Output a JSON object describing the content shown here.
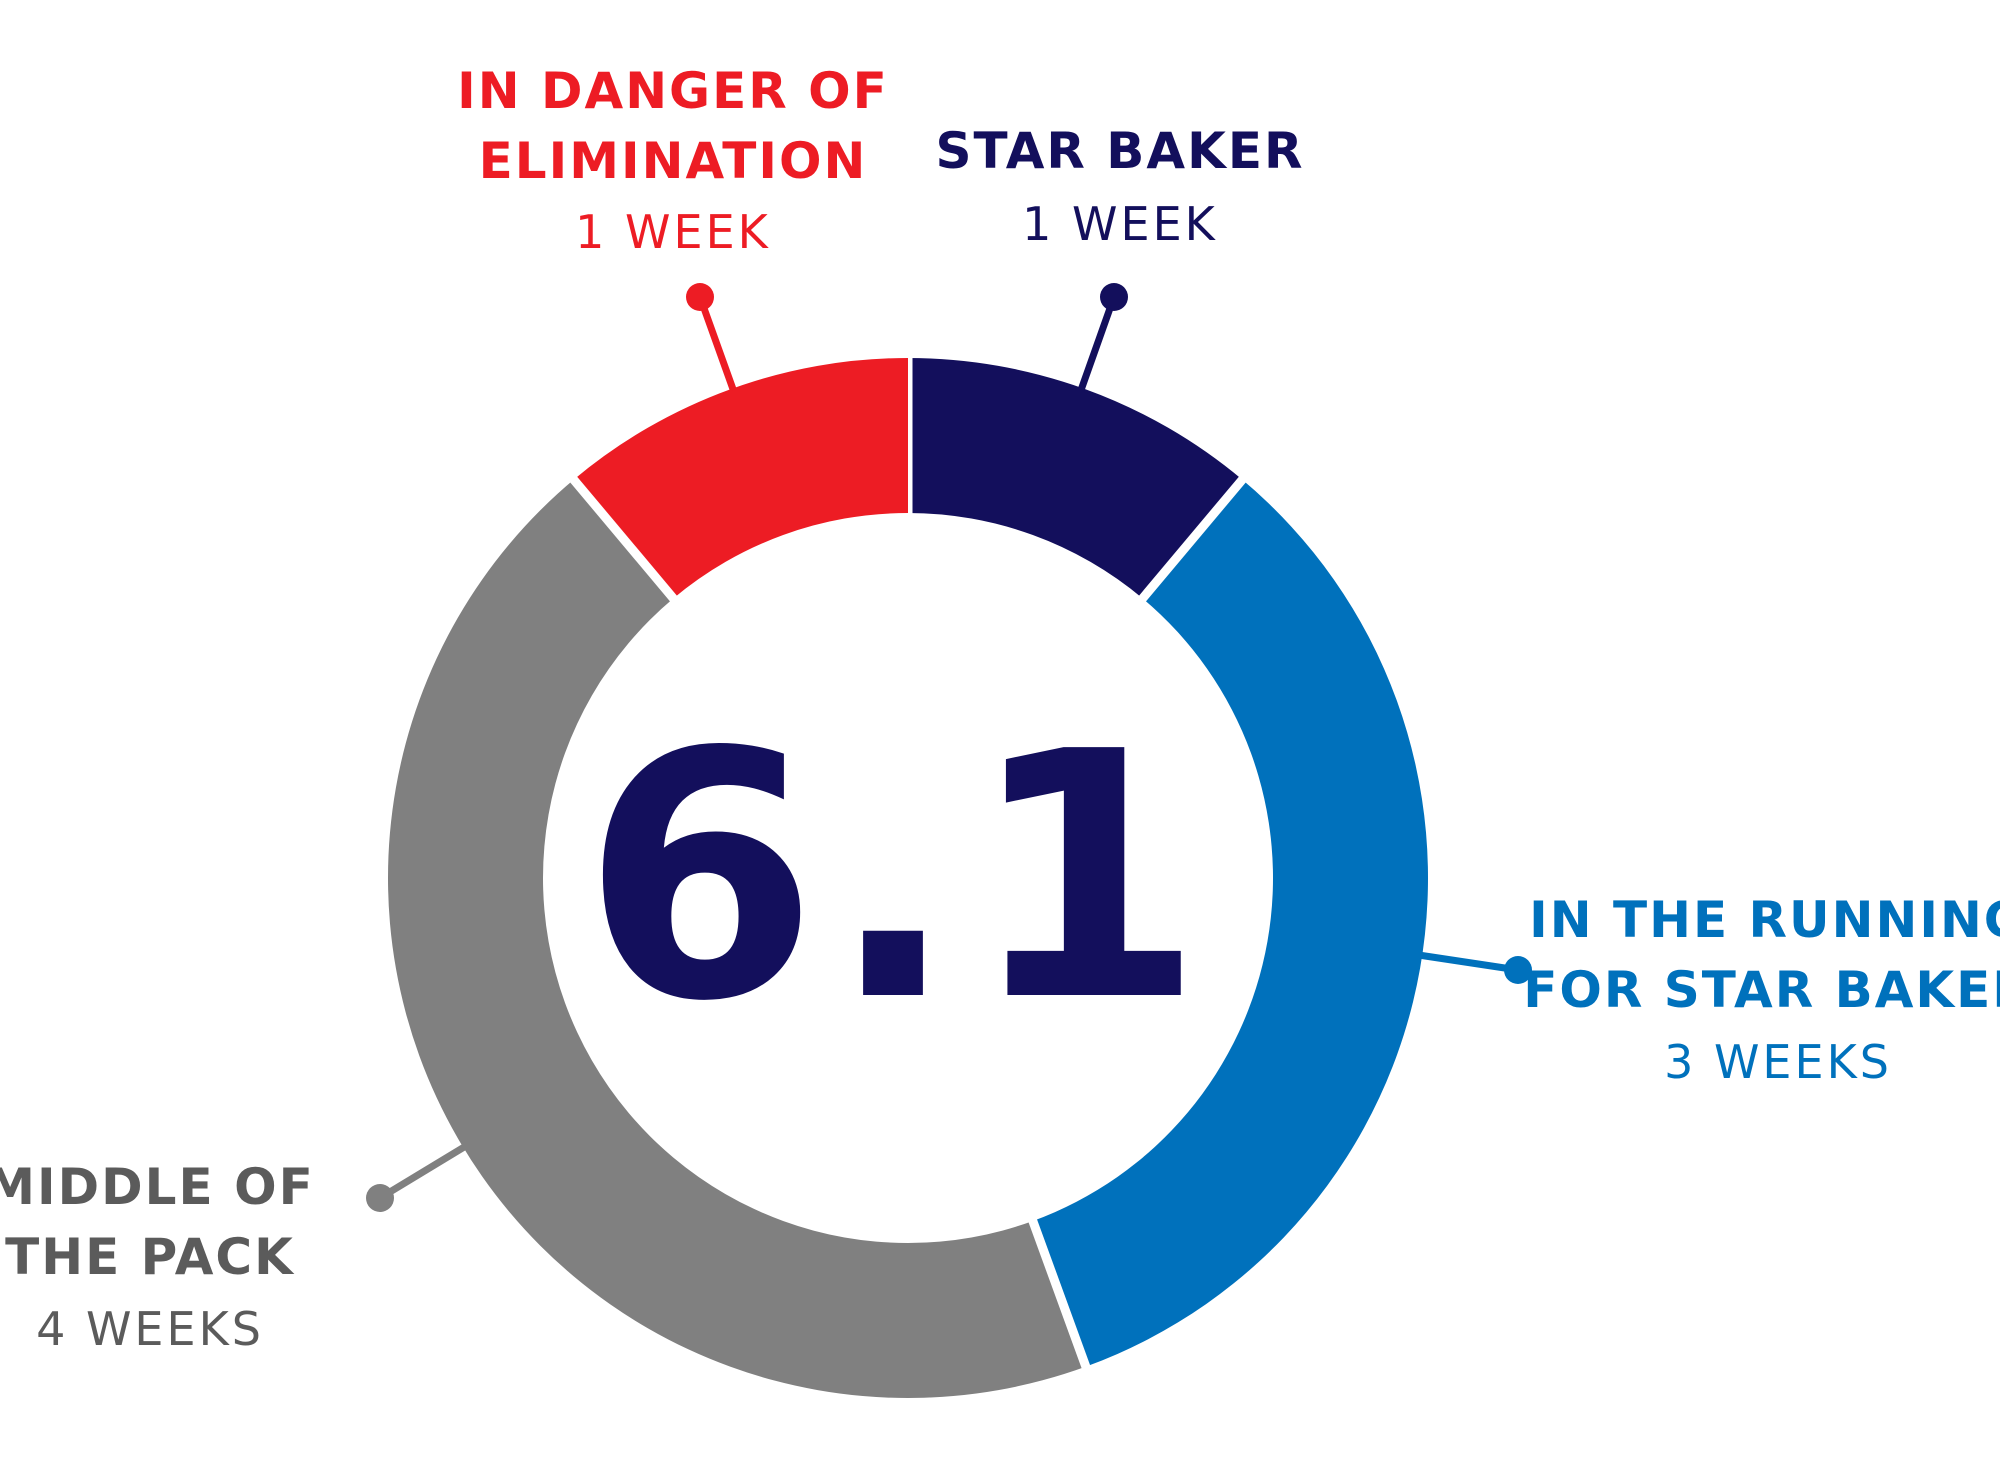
{
  "chart_data": {
    "type": "donut",
    "center_value": "6.1",
    "unit": "weeks",
    "slices": [
      {
        "key": "star_baker",
        "label_lines": [
          "STAR BAKER"
        ],
        "sublabel": "1 WEEK",
        "value": 1,
        "color": "#130f5c",
        "label_color": "#130f5c",
        "sub_color": "#130f5c"
      },
      {
        "key": "running",
        "label_lines": [
          "IN THE RUNNING",
          "FOR STAR BAKER"
        ],
        "sublabel": "3 WEEKS",
        "value": 3,
        "color": "#0071bc",
        "label_color": "#0071bc",
        "sub_color": "#0071bc"
      },
      {
        "key": "middle",
        "label_lines": [
          "MIDDLE OF",
          "THE PACK"
        ],
        "sublabel": "4 WEEKS",
        "value": 4,
        "color": "#808080",
        "label_color": "#5b5b5b",
        "sub_color": "#5b5b5b"
      },
      {
        "key": "danger",
        "label_lines": [
          "IN DANGER OF",
          "ELIMINATION"
        ],
        "sublabel": "1 WEEK",
        "value": 1,
        "color": "#ed1c24",
        "label_color": "#ed1c24",
        "sub_color": "#ed1c24"
      }
    ]
  },
  "colors": {
    "center_text": "#130f5c",
    "background": "#ffffff"
  }
}
